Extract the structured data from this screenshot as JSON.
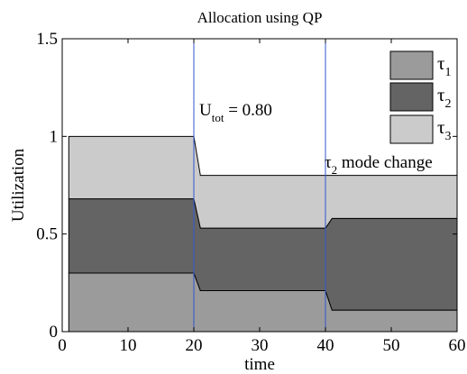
{
  "chart_data": {
    "type": "area",
    "title": "Allocation using QP",
    "xlabel": "time",
    "ylabel": "Utilization",
    "xlim": [
      0,
      60
    ],
    "ylim": [
      0,
      1.5
    ],
    "xticks": [
      "0",
      "10",
      "20",
      "30",
      "40",
      "50",
      "60"
    ],
    "yticks": [
      "0",
      "0.5",
      "1",
      "1.5"
    ],
    "stacked": true,
    "x": [
      1,
      20,
      21,
      40,
      41,
      60
    ],
    "series": [
      {
        "name": "τ1",
        "base": "τ",
        "sub": "1",
        "color": "#9b9b9b",
        "values": [
          0.3,
          0.3,
          0.21,
          0.21,
          0.11,
          0.11
        ]
      },
      {
        "name": "τ2",
        "base": "τ",
        "sub": "2",
        "color": "#646464",
        "values": [
          0.38,
          0.38,
          0.32,
          0.32,
          0.47,
          0.47
        ]
      },
      {
        "name": "τ3",
        "base": "τ",
        "sub": "3",
        "color": "#cbcbcb",
        "values": [
          0.32,
          0.32,
          0.27,
          0.27,
          0.22,
          0.22
        ]
      }
    ],
    "vlines": [
      20,
      40
    ],
    "vline_color": "#3355cc",
    "legend_position": "top-right",
    "grid": false,
    "annotations": {
      "utot": {
        "base": "U",
        "sub": "tot",
        "suffix": " = 0.80"
      },
      "mode_change": {
        "base": "τ",
        "sub": "2",
        "suffix": " mode change"
      }
    }
  }
}
